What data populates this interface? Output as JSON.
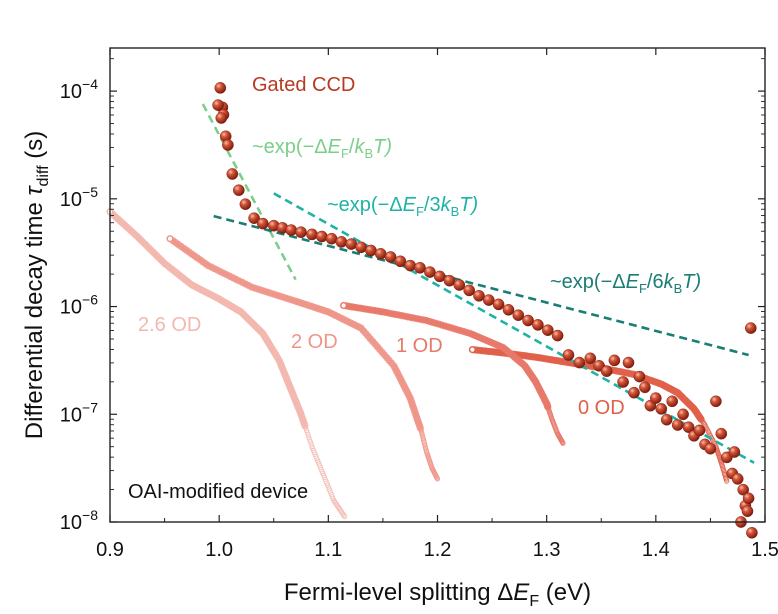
{
  "chart_data": {
    "type": "scatter",
    "title": "",
    "xlabel": {
      "main": "Fermi-level splitting Δ",
      "italic": "E",
      "sub": "F",
      "unit": " (eV)"
    },
    "ylabel": {
      "main": "Differential decay time ",
      "italic": "τ",
      "sub": "diff",
      "unit": " (s)"
    },
    "xlim": [
      0.9,
      1.5
    ],
    "ylim_log10": [
      -8,
      -3.6
    ],
    "x_ticks": [
      0.9,
      1.0,
      1.1,
      1.2,
      1.3,
      1.4,
      1.5
    ],
    "x_tick_labels": [
      "0.9",
      "1.0",
      "1.1",
      "1.2",
      "1.3",
      "1.4",
      "1.5"
    ],
    "y_ticks": [
      {
        "exp": -4,
        "base": "10",
        "sup": "−4"
      },
      {
        "exp": -5,
        "base": "10",
        "sup": "−5"
      },
      {
        "exp": -6,
        "base": "10",
        "sup": "−6"
      },
      {
        "exp": -7,
        "base": "10",
        "sup": "−7"
      },
      {
        "exp": -8,
        "base": "10",
        "sup": "−8"
      }
    ],
    "colors": {
      "gated": "#b83a22",
      "od0": "#e0604a",
      "od1": "#e8796a",
      "od2": "#ee968a",
      "od26": "#f3b8b0",
      "fit1": "#7ccf8a",
      "fit3": "#1fb3a6",
      "fit6": "#1a7e74"
    },
    "series": [
      {
        "name": "Gated CCD",
        "kind": "points",
        "x": [
          1.001,
          1.003,
          1.004,
          0.999,
          1.002,
          1.006,
          1.008,
          1.012,
          1.018,
          1.024,
          1.032,
          1.04,
          1.05,
          1.058,
          1.066,
          1.075,
          1.085,
          1.094,
          1.103,
          1.112,
          1.121,
          1.13,
          1.139,
          1.148,
          1.157,
          1.166,
          1.175,
          1.184,
          1.193,
          1.202,
          1.211,
          1.22,
          1.229,
          1.238,
          1.247,
          1.256,
          1.265,
          1.274,
          1.283,
          1.292,
          1.301,
          1.31,
          1.32,
          1.33,
          1.34,
          1.348,
          1.355,
          1.362,
          1.37,
          1.375,
          1.38,
          1.385,
          1.39,
          1.395,
          1.4,
          1.405,
          1.41,
          1.415,
          1.42,
          1.425,
          1.43,
          1.435,
          1.44,
          1.445,
          1.45,
          1.455,
          1.46,
          1.465,
          1.47,
          1.472,
          1.475,
          1.478,
          1.48,
          1.482,
          1.485,
          1.484,
          1.488,
          1.487
        ],
        "log10y": [
          -3.97,
          -4.15,
          -4.22,
          -4.13,
          -4.25,
          -4.42,
          -4.5,
          -4.77,
          -4.92,
          -5.05,
          -5.18,
          -5.23,
          -5.25,
          -5.27,
          -5.29,
          -5.31,
          -5.33,
          -5.35,
          -5.37,
          -5.4,
          -5.42,
          -5.45,
          -5.48,
          -5.51,
          -5.54,
          -5.58,
          -5.62,
          -5.64,
          -5.68,
          -5.72,
          -5.76,
          -5.8,
          -5.85,
          -5.9,
          -5.94,
          -5.98,
          -6.03,
          -6.08,
          -6.13,
          -6.17,
          -6.22,
          -6.27,
          -6.45,
          -6.52,
          -6.48,
          -6.55,
          -6.6,
          -6.5,
          -6.7,
          -6.52,
          -6.8,
          -6.65,
          -6.75,
          -6.92,
          -6.85,
          -6.95,
          -7.05,
          -6.88,
          -7.1,
          -7.0,
          -7.12,
          -7.2,
          -7.15,
          -7.28,
          -7.32,
          -6.88,
          -7.18,
          -7.4,
          -7.55,
          -7.35,
          -7.6,
          -8.0,
          -7.7,
          -7.85,
          -7.78,
          -7.9,
          -8.1,
          -6.2
        ]
      },
      {
        "name": "0 OD",
        "kind": "curve",
        "label": "0 OD",
        "x": [
          1.232,
          1.26,
          1.29,
          1.32,
          1.35,
          1.38,
          1.405,
          1.42,
          1.435,
          1.445,
          1.455,
          1.46,
          1.465
        ],
        "log10y": [
          -6.4,
          -6.43,
          -6.47,
          -6.52,
          -6.57,
          -6.63,
          -6.72,
          -6.8,
          -6.95,
          -7.1,
          -7.3,
          -7.45,
          -7.62
        ]
      },
      {
        "name": "1 OD",
        "kind": "curve",
        "label": "1 OD",
        "x": [
          1.114,
          1.15,
          1.19,
          1.23,
          1.26,
          1.28,
          1.29,
          1.3,
          1.305,
          1.31,
          1.315
        ],
        "log10y": [
          -5.99,
          -6.05,
          -6.13,
          -6.25,
          -6.38,
          -6.55,
          -6.7,
          -6.9,
          -7.05,
          -7.18,
          -7.27
        ]
      },
      {
        "name": "2 OD",
        "kind": "curve",
        "label": "2 OD",
        "x": [
          0.955,
          0.99,
          1.03,
          1.07,
          1.1,
          1.13,
          1.16,
          1.175,
          1.185,
          1.19,
          1.195,
          1.2
        ],
        "log10y": [
          -5.37,
          -5.62,
          -5.82,
          -5.95,
          -6.05,
          -6.2,
          -6.55,
          -6.85,
          -7.15,
          -7.35,
          -7.5,
          -7.6
        ]
      },
      {
        "name": "2.6 OD",
        "kind": "curve",
        "label": "2.6 OD",
        "x": [
          0.9,
          0.925,
          0.95,
          0.975,
          1.0,
          1.02,
          1.04,
          1.055,
          1.065,
          1.075,
          1.085,
          1.095,
          1.105,
          1.115
        ],
        "log10y": [
          -5.12,
          -5.35,
          -5.6,
          -5.8,
          -5.93,
          -6.05,
          -6.25,
          -6.5,
          -6.75,
          -7.0,
          -7.3,
          -7.55,
          -7.8,
          -7.95
        ]
      }
    ],
    "fits": [
      {
        "name": "fit-1kT",
        "x": [
          0.985,
          1.07
        ],
        "log10y": [
          -4.12,
          -5.75
        ],
        "label_parts": [
          "~exp(−Δ",
          "E",
          "F",
          "/",
          "k",
          "B",
          "T)"
        ]
      },
      {
        "name": "fit-3kT",
        "x": [
          1.05,
          1.49
        ],
        "log10y": [
          -4.95,
          -7.45
        ],
        "label_parts": [
          "~exp(−Δ",
          "E",
          "F",
          "/3",
          "k",
          "B",
          "T)"
        ]
      },
      {
        "name": "fit-6kT",
        "x": [
          0.995,
          1.485
        ],
        "log10y": [
          -5.16,
          -6.45
        ],
        "label_parts": [
          "~exp(−Δ",
          "E",
          "F",
          "/6",
          "k",
          "B",
          "T)"
        ]
      }
    ],
    "annotations": {
      "gated": "Gated CCD",
      "device": "OAI-modified device"
    }
  }
}
